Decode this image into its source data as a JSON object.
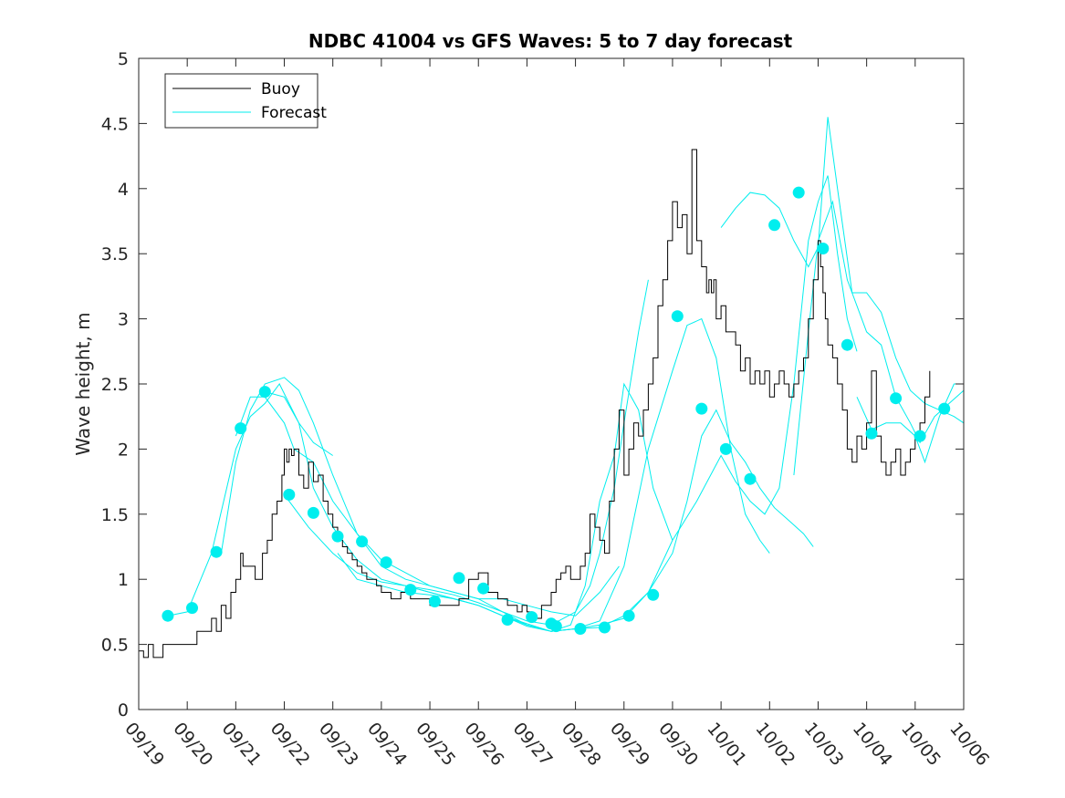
{
  "chart_data": {
    "type": "line",
    "title": "NDBC 41004 vs GFS Waves: 5 to 7 day forecast",
    "xlabel": "",
    "ylabel": "Wave height, m",
    "xlim": [
      0,
      17
    ],
    "ylim": [
      0,
      5
    ],
    "grid": false,
    "legend_position": "top-left",
    "xticks": [
      {
        "x": 0,
        "label": "09/19"
      },
      {
        "x": 1,
        "label": "09/20"
      },
      {
        "x": 2,
        "label": "09/21"
      },
      {
        "x": 3,
        "label": "09/22"
      },
      {
        "x": 4,
        "label": "09/23"
      },
      {
        "x": 5,
        "label": "09/24"
      },
      {
        "x": 6,
        "label": "09/25"
      },
      {
        "x": 7,
        "label": "09/26"
      },
      {
        "x": 8,
        "label": "09/27"
      },
      {
        "x": 9,
        "label": "09/28"
      },
      {
        "x": 10,
        "label": "09/29"
      },
      {
        "x": 11,
        "label": "09/30"
      },
      {
        "x": 12,
        "label": "10/01"
      },
      {
        "x": 13,
        "label": "10/02"
      },
      {
        "x": 14,
        "label": "10/03"
      },
      {
        "x": 15,
        "label": "10/04"
      },
      {
        "x": 16,
        "label": "10/05"
      },
      {
        "x": 17,
        "label": "10/06"
      }
    ],
    "yticks": [
      {
        "y": 0,
        "label": "0"
      },
      {
        "y": 0.5,
        "label": "0.5"
      },
      {
        "y": 1,
        "label": "1"
      },
      {
        "y": 1.5,
        "label": "1.5"
      },
      {
        "y": 2,
        "label": "2"
      },
      {
        "y": 2.5,
        "label": "2.5"
      },
      {
        "y": 3,
        "label": "3"
      },
      {
        "y": 3.5,
        "label": "3.5"
      },
      {
        "y": 4,
        "label": "4"
      },
      {
        "y": 4.5,
        "label": "4.5"
      },
      {
        "y": 5,
        "label": "5"
      }
    ],
    "series": [
      {
        "name": "Buoy",
        "color": "#000000",
        "x": [
          0,
          0.1,
          0.2,
          0.3,
          0.5,
          0.7,
          1.0,
          1.2,
          1.4,
          1.5,
          1.6,
          1.7,
          1.8,
          1.9,
          2.0,
          2.1,
          2.15,
          2.25,
          2.4,
          2.55,
          2.65,
          2.75,
          2.85,
          2.95,
          3.0,
          3.05,
          3.1,
          3.15,
          3.2,
          3.3,
          3.4,
          3.5,
          3.6,
          3.7,
          3.8,
          3.9,
          4.0,
          4.1,
          4.2,
          4.3,
          4.4,
          4.5,
          4.6,
          4.7,
          4.8,
          4.9,
          5.0,
          5.1,
          5.2,
          5.4,
          5.6,
          5.8,
          6.0,
          6.2,
          6.4,
          6.6,
          6.8,
          7.0,
          7.2,
          7.4,
          7.6,
          7.8,
          7.9,
          8.0,
          8.1,
          8.2,
          8.3,
          8.4,
          8.5,
          8.6,
          8.7,
          8.8,
          8.9,
          9.0,
          9.1,
          9.2,
          9.3,
          9.4,
          9.5,
          9.6,
          9.7,
          9.8,
          9.9,
          10.0,
          10.1,
          10.2,
          10.3,
          10.4,
          10.5,
          10.6,
          10.7,
          10.8,
          10.9,
          11.0,
          11.1,
          11.2,
          11.3,
          11.4,
          11.5,
          11.6,
          11.7,
          11.75,
          11.8,
          11.85,
          11.9,
          12.0,
          12.1,
          12.2,
          12.3,
          12.4,
          12.5,
          12.6,
          12.7,
          12.8,
          12.9,
          13.0,
          13.1,
          13.2,
          13.3,
          13.4,
          13.5,
          13.6,
          13.7,
          13.8,
          13.9,
          14.0,
          14.05,
          14.1,
          14.15,
          14.2,
          14.3,
          14.4,
          14.5,
          14.6,
          14.7,
          14.8,
          14.9,
          15.0,
          15.1,
          15.2,
          15.3,
          15.4,
          15.5,
          15.6,
          15.7,
          15.8,
          15.9,
          16.0,
          16.1,
          16.2,
          16.3
        ],
        "y": [
          0.45,
          0.4,
          0.5,
          0.4,
          0.5,
          0.5,
          0.5,
          0.6,
          0.6,
          0.7,
          0.6,
          0.8,
          0.7,
          0.9,
          1.0,
          1.2,
          1.1,
          1.1,
          1.0,
          1.2,
          1.3,
          1.5,
          1.6,
          1.8,
          2.0,
          1.9,
          2.0,
          1.95,
          2.0,
          1.8,
          1.7,
          1.9,
          1.75,
          1.8,
          1.6,
          1.5,
          1.4,
          1.3,
          1.25,
          1.2,
          1.15,
          1.1,
          1.05,
          1.0,
          1.0,
          0.95,
          0.9,
          0.9,
          0.85,
          0.9,
          0.85,
          0.85,
          0.8,
          0.8,
          0.8,
          0.85,
          1.0,
          1.05,
          0.9,
          0.85,
          0.8,
          0.75,
          0.8,
          0.75,
          0.7,
          0.7,
          0.8,
          0.8,
          0.9,
          1.0,
          1.05,
          1.1,
          1.0,
          1.0,
          1.1,
          1.2,
          1.5,
          1.4,
          1.3,
          1.2,
          1.6,
          2.0,
          2.3,
          1.8,
          2.0,
          2.2,
          2.1,
          2.3,
          2.5,
          2.7,
          3.1,
          3.3,
          3.6,
          3.9,
          3.7,
          3.8,
          3.5,
          4.3,
          3.6,
          3.4,
          3.2,
          3.3,
          3.2,
          3.3,
          3.0,
          3.1,
          2.9,
          2.9,
          2.8,
          2.6,
          2.7,
          2.5,
          2.6,
          2.5,
          2.6,
          2.4,
          2.5,
          2.6,
          2.5,
          2.4,
          2.5,
          2.6,
          2.7,
          3.0,
          3.3,
          3.6,
          3.4,
          3.2,
          3.0,
          2.8,
          2.7,
          2.5,
          2.3,
          2.0,
          1.9,
          2.1,
          2.0,
          2.2,
          2.6,
          2.1,
          1.9,
          1.8,
          1.9,
          2.0,
          1.8,
          1.9,
          2.0,
          2.1,
          2.2,
          2.4,
          2.6
        ]
      },
      {
        "name": "Forecast",
        "color": "#00eeee",
        "tracks": [
          {
            "x": [
              0.6,
              1.0,
              1.5,
              2.0,
              2.3,
              2.6,
              2.9,
              3.1,
              3.3,
              3.6,
              4.0
            ],
            "y": [
              0.72,
              0.75,
              1.2,
              2.0,
              2.25,
              2.35,
              2.5,
              2.35,
              2.2,
              2.05,
              1.95
            ]
          },
          {
            "x": [
              1.7,
              2.0,
              2.3,
              2.6,
              3.0,
              3.3,
              3.6,
              4.0,
              4.5,
              5.0,
              5.5,
              6.0,
              6.5,
              7.0,
              7.5,
              8.0,
              8.5,
              9.0,
              9.5,
              9.9
            ],
            "y": [
              1.2,
              1.9,
              2.3,
              2.5,
              2.55,
              2.45,
              2.2,
              1.8,
              1.35,
              1.1,
              1.0,
              0.95,
              0.9,
              0.85,
              0.85,
              0.8,
              0.75,
              0.72,
              0.9,
              1.1
            ]
          },
          {
            "x": [
              2.0,
              2.3,
              2.6,
              3.0,
              3.2,
              3.6,
              4.0,
              4.5,
              5.0,
              5.5,
              6.0,
              6.5,
              7.0,
              7.5,
              8.0,
              8.5,
              9.0,
              9.3,
              9.5,
              9.8,
              10.0,
              10.3,
              10.5
            ],
            "y": [
              2.1,
              2.4,
              2.4,
              2.2,
              2.0,
              1.9,
              1.6,
              1.35,
              1.15,
              1.05,
              0.95,
              0.9,
              0.85,
              0.75,
              0.68,
              0.65,
              0.75,
              0.95,
              1.2,
              1.7,
              2.2,
              2.9,
              3.3
            ]
          },
          {
            "x": [
              2.5,
              3.0,
              3.3,
              3.6,
              4.0,
              4.5,
              5.0,
              5.5,
              6.0,
              6.5,
              7.0,
              7.5,
              8.0,
              8.5,
              8.9,
              9.2,
              9.5,
              9.8,
              10.0,
              10.3,
              10.6,
              11.0
            ],
            "y": [
              2.45,
              2.4,
              2.2,
              1.7,
              1.4,
              1.15,
              1.0,
              0.95,
              0.9,
              0.85,
              0.8,
              0.72,
              0.66,
              0.6,
              0.65,
              0.95,
              1.6,
              1.95,
              2.5,
              2.3,
              1.7,
              1.3
            ]
          },
          {
            "x": [
              3.0,
              3.5,
              4.0,
              4.5,
              5.0,
              5.5,
              6.0,
              6.5,
              7.0,
              7.5,
              8.0,
              8.5,
              9.0,
              9.5,
              10.0,
              10.5,
              11.0,
              11.3,
              11.6,
              11.9,
              12.2,
              12.5,
              12.8,
              13.0
            ],
            "y": [
              1.65,
              1.4,
              1.2,
              1.05,
              0.98,
              0.95,
              0.92,
              0.88,
              0.82,
              0.75,
              0.65,
              0.6,
              0.62,
              0.68,
              1.1,
              2.0,
              2.6,
              2.95,
              3.0,
              2.7,
              2.0,
              1.5,
              1.3,
              1.2
            ]
          },
          {
            "x": [
              4.1,
              4.5,
              5.0,
              5.5,
              6.0,
              6.5,
              7.0,
              7.5,
              8.0,
              8.5,
              9.0,
              9.5,
              10.0,
              10.5,
              11.0,
              11.3,
              11.6,
              11.9,
              12.2,
              12.5,
              12.8,
              13.1,
              13.4,
              13.7,
              13.9
            ],
            "y": [
              1.2,
              1.0,
              0.95,
              0.9,
              0.88,
              0.85,
              0.8,
              0.72,
              0.64,
              0.6,
              0.62,
              0.65,
              0.7,
              0.9,
              1.2,
              1.6,
              2.1,
              2.3,
              2.05,
              1.9,
              1.7,
              1.55,
              1.45,
              1.35,
              1.25
            ]
          },
          {
            "x": [
              5.5,
              6.0,
              6.5,
              7.0,
              7.5,
              8.0,
              8.5,
              9.0,
              9.5,
              10.0,
              10.5,
              11.0,
              11.5,
              12.0,
              12.3,
              12.6,
              12.9,
              13.2,
              13.5,
              13.8,
              14.0,
              14.2,
              14.4,
              14.6,
              14.8
            ],
            "y": [
              0.95,
              0.9,
              0.85,
              0.8,
              0.72,
              0.65,
              0.6,
              0.62,
              0.63,
              0.72,
              0.9,
              1.3,
              1.6,
              1.95,
              1.75,
              1.6,
              1.5,
              1.7,
              2.5,
              3.6,
              3.9,
              4.1,
              3.5,
              3.0,
              2.75
            ]
          },
          {
            "x": [
              12.0,
              12.3,
              12.6,
              12.9,
              13.2,
              13.5,
              13.8,
              14.0,
              14.2,
              14.4,
              14.7,
              15.0,
              15.3,
              15.6,
              15.9,
              16.2,
              16.5,
              16.8,
              17.0
            ],
            "y": [
              3.7,
              3.85,
              3.97,
              3.95,
              3.85,
              3.6,
              3.4,
              3.55,
              4.55,
              4.0,
              3.2,
              3.2,
              3.05,
              2.7,
              2.45,
              2.35,
              2.3,
              2.25,
              2.2
            ]
          },
          {
            "x": [
              13.5,
              13.8,
              14.0,
              14.3,
              14.6,
              15.0,
              15.3,
              15.6,
              15.9,
              16.1,
              16.4,
              16.7,
              17.0
            ],
            "y": [
              1.8,
              2.9,
              3.6,
              3.9,
              3.3,
              2.9,
              2.8,
              2.4,
              2.2,
              2.05,
              2.25,
              2.35,
              2.45
            ]
          },
          {
            "x": [
              14.8,
              15.1,
              15.4,
              15.7,
              16.0,
              16.2,
              16.5,
              16.8,
              17.0
            ],
            "y": [
              2.4,
              2.15,
              2.2,
              2.2,
              2.1,
              1.9,
              2.25,
              2.5,
              2.5
            ]
          }
        ],
        "markers": {
          "x": [
            0.6,
            1.1,
            1.6,
            2.1,
            2.6,
            3.1,
            3.6,
            4.1,
            4.6,
            5.1,
            5.6,
            6.1,
            6.6,
            7.1,
            7.6,
            8.1,
            8.5,
            8.6,
            9.1,
            9.6,
            10.1,
            10.6,
            11.1,
            11.6,
            12.1,
            12.6,
            13.1,
            13.6,
            14.1,
            14.6,
            15.1,
            15.6,
            16.1,
            16.6
          ],
          "y": [
            0.72,
            0.78,
            1.21,
            2.16,
            2.44,
            1.65,
            1.51,
            1.33,
            1.29,
            1.13,
            0.92,
            0.83,
            1.01,
            0.93,
            0.69,
            0.71,
            0.66,
            0.64,
            0.62,
            0.63,
            0.72,
            0.88,
            3.02,
            2.31,
            2.0,
            1.77,
            3.72,
            3.97,
            3.54,
            2.8,
            2.12,
            2.39,
            2.1,
            2.31
          ]
        }
      }
    ]
  }
}
